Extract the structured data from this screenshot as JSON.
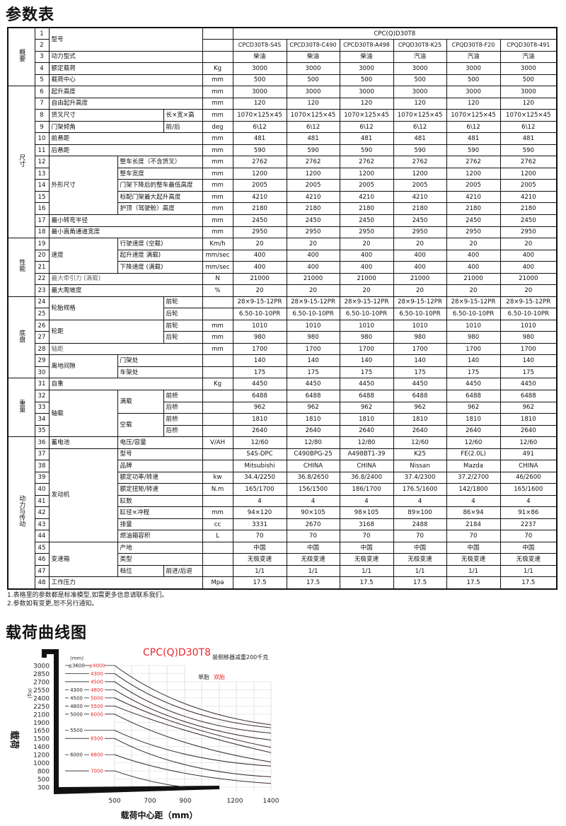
{
  "page_title": "参数表",
  "notes": [
    "1.表格里的参数都是标准模型,如需更多信息请联系我们。",
    "2.参数如有变更,恕不另行通知。"
  ],
  "table": {
    "series_name": "CPC(Q)D30T8",
    "models": [
      "CPCD30T8-S4S",
      "CPCD30T8-C490",
      "CPCD30T8-A498",
      "CPQD30T8-K25",
      "CPQD30T8-F20",
      "CPQD30T8-491"
    ],
    "sections": [
      {
        "name": "概要",
        "from": 1,
        "to": 5
      },
      {
        "name": "尺寸",
        "from": 6,
        "to": 18
      },
      {
        "name": "性能",
        "from": 19,
        "to": 23
      },
      {
        "name": "底盘",
        "from": 24,
        "to": 30
      },
      {
        "name": "重量",
        "from": 31,
        "to": 35
      },
      {
        "name": "动力与传动",
        "from": 36,
        "to": 48
      }
    ],
    "rows": [
      {
        "no": "1",
        "labels": [
          "型号"
        ],
        "unit": "",
        "values": [
          "CPC(Q)D30T8"
        ]
      },
      {
        "no": "2",
        "labels": [],
        "unit": "",
        "values": [
          "CPCD30T8-S4S",
          "CPCD30T8-C490",
          "CPCD30T8-A498",
          "CPQD30T8-K25",
          "CPQD30T8-F20",
          "CPQD30T8-491"
        ]
      },
      {
        "no": "3",
        "labels": [
          "动力型式"
        ],
        "unit": "",
        "values": [
          "柴油",
          "柴油",
          "柴油",
          "汽油",
          "汽油",
          "汽油"
        ]
      },
      {
        "no": "4",
        "labels": [
          "额定载荷"
        ],
        "unit": "Kg",
        "values": [
          "3000",
          "3000",
          "3000",
          "3000",
          "3000",
          "3000"
        ]
      },
      {
        "no": "5",
        "labels": [
          "载荷中心"
        ],
        "unit": "mm",
        "values": [
          "500",
          "500",
          "500",
          "500",
          "500",
          "500"
        ]
      },
      {
        "no": "6",
        "labels": [
          "起升高度"
        ],
        "unit": "mm",
        "values": [
          "3000",
          "3000",
          "3000",
          "3000",
          "3000",
          "3000"
        ]
      },
      {
        "no": "7",
        "labels": [
          "自由起升高度"
        ],
        "unit": "mm",
        "values": [
          "120",
          "120",
          "120",
          "120",
          "120",
          "120"
        ]
      },
      {
        "no": "8",
        "labels": [
          "货叉尺寸",
          "长×宽×高"
        ],
        "unit": "mm",
        "values": [
          "1070×125×45",
          "1070×125×45",
          "1070×125×45",
          "1070×125×45",
          "1070×125×45",
          "1070×125×45"
        ]
      },
      {
        "no": "9",
        "labels": [
          "门架倾角",
          "前/后"
        ],
        "unit": "deg",
        "values": [
          "6\\12",
          "6\\12",
          "6\\12",
          "6\\12",
          "6\\12",
          "6\\12"
        ]
      },
      {
        "no": "10",
        "labels": [
          "前悬距"
        ],
        "unit": "mm",
        "values": [
          "481",
          "481",
          "481",
          "481",
          "481",
          "481"
        ]
      },
      {
        "no": "11",
        "labels": [
          "后悬距"
        ],
        "unit": "mm",
        "values": [
          "590",
          "590",
          "590",
          "590",
          "590",
          "590"
        ]
      },
      {
        "no": "12",
        "labels": [
          "外形尺寸",
          "整车长度（不含货叉）"
        ],
        "unit": "mm",
        "values": [
          "2762",
          "2762",
          "2762",
          "2762",
          "2762",
          "2762"
        ]
      },
      {
        "no": "13",
        "labels": [
          "整车宽度"
        ],
        "unit": "mm",
        "values": [
          "1200",
          "1200",
          "1200",
          "1200",
          "1200",
          "1200"
        ]
      },
      {
        "no": "14",
        "labels": [
          "门架下降后的整车最低高度"
        ],
        "unit": "mm",
        "values": [
          "2005",
          "2005",
          "2005",
          "2005",
          "2005",
          "2005"
        ]
      },
      {
        "no": "15",
        "labels": [
          "标配门架最大起升高度"
        ],
        "unit": "mm",
        "values": [
          "4210",
          "4210",
          "4210",
          "4210",
          "4210",
          "4210"
        ]
      },
      {
        "no": "16",
        "labels": [
          "护顶（驾驶舱）高度"
        ],
        "unit": "mm",
        "values": [
          "2180",
          "2180",
          "2180",
          "2180",
          "2180",
          "2180"
        ]
      },
      {
        "no": "17",
        "labels": [
          "最小转弯半径"
        ],
        "unit": "mm",
        "values": [
          "2450",
          "2450",
          "2450",
          "2450",
          "2450",
          "2450"
        ]
      },
      {
        "no": "18",
        "labels": [
          "最小直角通道宽度"
        ],
        "unit": "mm",
        "values": [
          "2950",
          "2950",
          "2950",
          "2950",
          "2950",
          "2950"
        ]
      },
      {
        "no": "19",
        "labels": [
          "速度",
          "行驶速度 (空载)"
        ],
        "unit": "Km/h",
        "values": [
          "20",
          "20",
          "20",
          "20",
          "20",
          "20"
        ]
      },
      {
        "no": "20",
        "labels": [
          "起升速度 满载)"
        ],
        "unit": "mm/sec",
        "values": [
          "400",
          "400",
          "400",
          "400",
          "400",
          "400"
        ]
      },
      {
        "no": "21",
        "labels": [
          "下降速度 (满载)"
        ],
        "unit": "mm/sec",
        "values": [
          "400",
          "400",
          "400",
          "400",
          "400",
          "400"
        ]
      },
      {
        "no": "22",
        "labels": [
          "最大牵引力 (满载)"
        ],
        "unit": "N",
        "values": [
          "21000",
          "21000",
          "21000",
          "21000",
          "21000",
          "21000"
        ]
      },
      {
        "no": "23",
        "labels": [
          "最大爬坡度"
        ],
        "unit": "%",
        "values": [
          "20",
          "20",
          "20",
          "20",
          "20",
          "20"
        ]
      },
      {
        "no": "24",
        "labels": [
          "轮胎规格",
          "前轮"
        ],
        "unit": "",
        "values": [
          "28×9-15-12PR",
          "28×9-15-12PR",
          "28×9-15-12PR",
          "28×9-15-12PR",
          "28×9-15-12PR",
          "28×9-15-12PR"
        ]
      },
      {
        "no": "25",
        "labels": [
          "后轮"
        ],
        "unit": "",
        "values": [
          "6.50-10-10PR",
          "6.50-10-10PR",
          "6.50-10-10PR",
          "6.50-10-10PR",
          "6.50-10-10PR",
          "6.50-10-10PR"
        ]
      },
      {
        "no": "26",
        "labels": [
          "轮距",
          "前轮"
        ],
        "unit": "mm",
        "values": [
          "1010",
          "1010",
          "1010",
          "1010",
          "1010",
          "1010"
        ]
      },
      {
        "no": "27",
        "labels": [
          "后轮"
        ],
        "unit": "mm",
        "values": [
          "980",
          "980",
          "980",
          "980",
          "980",
          "980"
        ]
      },
      {
        "no": "28",
        "labels": [
          "轴距"
        ],
        "unit": "mm",
        "values": [
          "1700",
          "1700",
          "1700",
          "1700",
          "1700",
          "1700"
        ]
      },
      {
        "no": "29",
        "labels": [
          "离地间隙",
          "门架处"
        ],
        "unit": "",
        "values": [
          "140",
          "140",
          "140",
          "140",
          "140",
          "140"
        ]
      },
      {
        "no": "30",
        "labels": [
          "车架处"
        ],
        "unit": "",
        "values": [
          "175",
          "175",
          "175",
          "175",
          "175",
          "175"
        ]
      },
      {
        "no": "31",
        "labels": [
          "自重"
        ],
        "unit": "Kg",
        "values": [
          "4450",
          "4450",
          "4450",
          "4450",
          "4450",
          "4450"
        ]
      },
      {
        "no": "32",
        "labels": [
          "轴载",
          "满载",
          "前桥"
        ],
        "unit": "",
        "values": [
          "6488",
          "6488",
          "6488",
          "6488",
          "6488",
          "6488"
        ]
      },
      {
        "no": "33",
        "labels": [
          "后桥"
        ],
        "unit": "",
        "values": [
          "962",
          "962",
          "962",
          "962",
          "962",
          "962"
        ]
      },
      {
        "no": "34",
        "labels": [
          "空载",
          "前桥"
        ],
        "unit": "",
        "values": [
          "1810",
          "1810",
          "1810",
          "1810",
          "1810",
          "1810"
        ]
      },
      {
        "no": "35",
        "labels": [
          "后桥"
        ],
        "unit": "",
        "values": [
          "2640",
          "2640",
          "2640",
          "2640",
          "2640",
          "2640"
        ]
      },
      {
        "no": "36",
        "labels": [
          "蓄电池",
          "电压/容量"
        ],
        "unit": "V/AH",
        "values": [
          "12/60",
          "12/80",
          "12/80",
          "12/60",
          "12/60",
          "12/60"
        ]
      },
      {
        "no": "37",
        "labels": [
          "发动机",
          "型号"
        ],
        "unit": "",
        "values": [
          "S4S-DPC",
          "C490BPG-25",
          "A498BT1-39",
          "K25",
          "FE(2.0L)",
          "491"
        ]
      },
      {
        "no": "38",
        "labels": [
          "品牌"
        ],
        "unit": "",
        "values": [
          "Mitsubishi",
          "CHINA",
          "CHINA",
          "Nissan",
          "Mazda",
          "CHINA"
        ]
      },
      {
        "no": "39",
        "labels": [
          "额定功率/转速"
        ],
        "unit": "kw",
        "values": [
          "34.4/2250",
          "36.8/2650",
          "36.8/2400",
          "37.4/2300",
          "37.2/2700",
          "46/2600"
        ]
      },
      {
        "no": "40",
        "labels": [
          "额定扭矩/转速"
        ],
        "unit": "N.m",
        "values": [
          "165/1700",
          "156/1500",
          "186/1700",
          "176.5/1600",
          "142/1800",
          "165/1600"
        ]
      },
      {
        "no": "41",
        "labels": [
          "缸数"
        ],
        "unit": "",
        "values": [
          "4",
          "4",
          "4",
          "4",
          "4",
          "4"
        ]
      },
      {
        "no": "42",
        "labels": [
          "缸径×冲程"
        ],
        "unit": "mm",
        "values": [
          "94×120",
          "90×105",
          "98×105",
          "89×100",
          "86×94",
          "91×86"
        ]
      },
      {
        "no": "43",
        "labels": [
          "排量"
        ],
        "unit": "cc",
        "values": [
          "3331",
          "2670",
          "3168",
          "2488",
          "2184",
          "2237"
        ]
      },
      {
        "no": "44",
        "labels": [
          "燃油箱容积"
        ],
        "unit": "L",
        "values": [
          "70",
          "70",
          "70",
          "70",
          "70",
          "70"
        ]
      },
      {
        "no": "45",
        "labels": [
          "变速箱",
          "产地"
        ],
        "unit": "",
        "values": [
          "中国",
          "中国",
          "中国",
          "中国",
          "中国",
          "中国"
        ]
      },
      {
        "no": "46",
        "labels": [
          "类型"
        ],
        "unit": "",
        "values": [
          "无极变速",
          "无极变速",
          "无极变速",
          "无极变速",
          "无极变速",
          "无极变速"
        ]
      },
      {
        "no": "47",
        "labels": [
          "档位",
          "前进/后退"
        ],
        "unit": "",
        "values": [
          "1/1",
          "1/1",
          "1/1",
          "1/1",
          "1/1",
          "1/1"
        ]
      },
      {
        "no": "48",
        "labels": [
          "工作压力"
        ],
        "unit": "Mpa",
        "values": [
          "17.5",
          "17.5",
          "17.5",
          "17.5",
          "17.5",
          "17.5"
        ]
      }
    ]
  },
  "chart_section_title": "载荷曲线图",
  "chart_data": {
    "type": "line",
    "title": "CPC(Q)D30T8",
    "annotation": "装侧移器减重200千克",
    "legend": [
      {
        "name": "单胎",
        "color": "#222222"
      },
      {
        "name": "双胎",
        "color": "#e8262c"
      }
    ],
    "legend_placement": "top-right",
    "xlabel": "载荷中心距（mm）",
    "ylabel": "载荷",
    "yunit": "(Kg)",
    "mast_unit": "(mm)",
    "xticks": [
      500,
      700,
      900,
      1200,
      1400
    ],
    "yticks": [
      3000,
      2850,
      2700,
      2550,
      2400,
      2250,
      2100,
      1900,
      1650,
      1500,
      1400,
      1200,
      1000,
      800,
      500,
      300
    ],
    "grid": true,
    "series": [
      {
        "load": 3000,
        "single": "≤3600",
        "dual": "≤4000",
        "points": [
          [
            500,
            3000
          ],
          [
            900,
            2290
          ],
          [
            1400,
            1820
          ]
        ]
      },
      {
        "load": 2850,
        "single": "",
        "dual": "4300",
        "points": [
          [
            500,
            2850
          ],
          [
            900,
            2180
          ],
          [
            1400,
            1730
          ]
        ]
      },
      {
        "load": 2700,
        "single": "",
        "dual": "4500",
        "points": [
          [
            500,
            2700
          ],
          [
            900,
            2040
          ],
          [
            1400,
            1600
          ]
        ]
      },
      {
        "load": 2550,
        "single": "4300",
        "dual": "4800",
        "points": [
          [
            500,
            2550
          ],
          [
            900,
            1910
          ],
          [
            1400,
            1480
          ]
        ]
      },
      {
        "load": 2400,
        "single": "4500",
        "dual": "5000",
        "points": [
          [
            500,
            2400
          ],
          [
            900,
            1790
          ],
          [
            1400,
            1380
          ]
        ]
      },
      {
        "load": 2250,
        "single": "4800",
        "dual": "5500",
        "points": [
          [
            500,
            2250
          ],
          [
            900,
            1650
          ],
          [
            1400,
            1250
          ]
        ]
      },
      {
        "load": 2100,
        "single": "5000",
        "dual": "6000",
        "points": [
          [
            500,
            2100
          ],
          [
            900,
            1450
          ],
          [
            1400,
            1020
          ]
        ]
      },
      {
        "load": 1650,
        "single": "5500",
        "dual": "",
        "points": [
          [
            500,
            1650
          ],
          [
            900,
            1210
          ],
          [
            1400,
            920
          ]
        ]
      },
      {
        "load": 1500,
        "single": "",
        "dual": "6500",
        "points": [
          [
            500,
            1500
          ],
          [
            900,
            950
          ],
          [
            1400,
            580
          ]
        ]
      },
      {
        "load": 1200,
        "single": "6000",
        "dual": "6800",
        "points": [
          [
            500,
            1200
          ],
          [
            900,
            710
          ],
          [
            1400,
            390
          ]
        ]
      },
      {
        "load": 800,
        "single": "",
        "dual": "7000",
        "points": [
          [
            500,
            800
          ],
          [
            700,
            450
          ],
          [
            900,
            300
          ]
        ]
      }
    ]
  }
}
